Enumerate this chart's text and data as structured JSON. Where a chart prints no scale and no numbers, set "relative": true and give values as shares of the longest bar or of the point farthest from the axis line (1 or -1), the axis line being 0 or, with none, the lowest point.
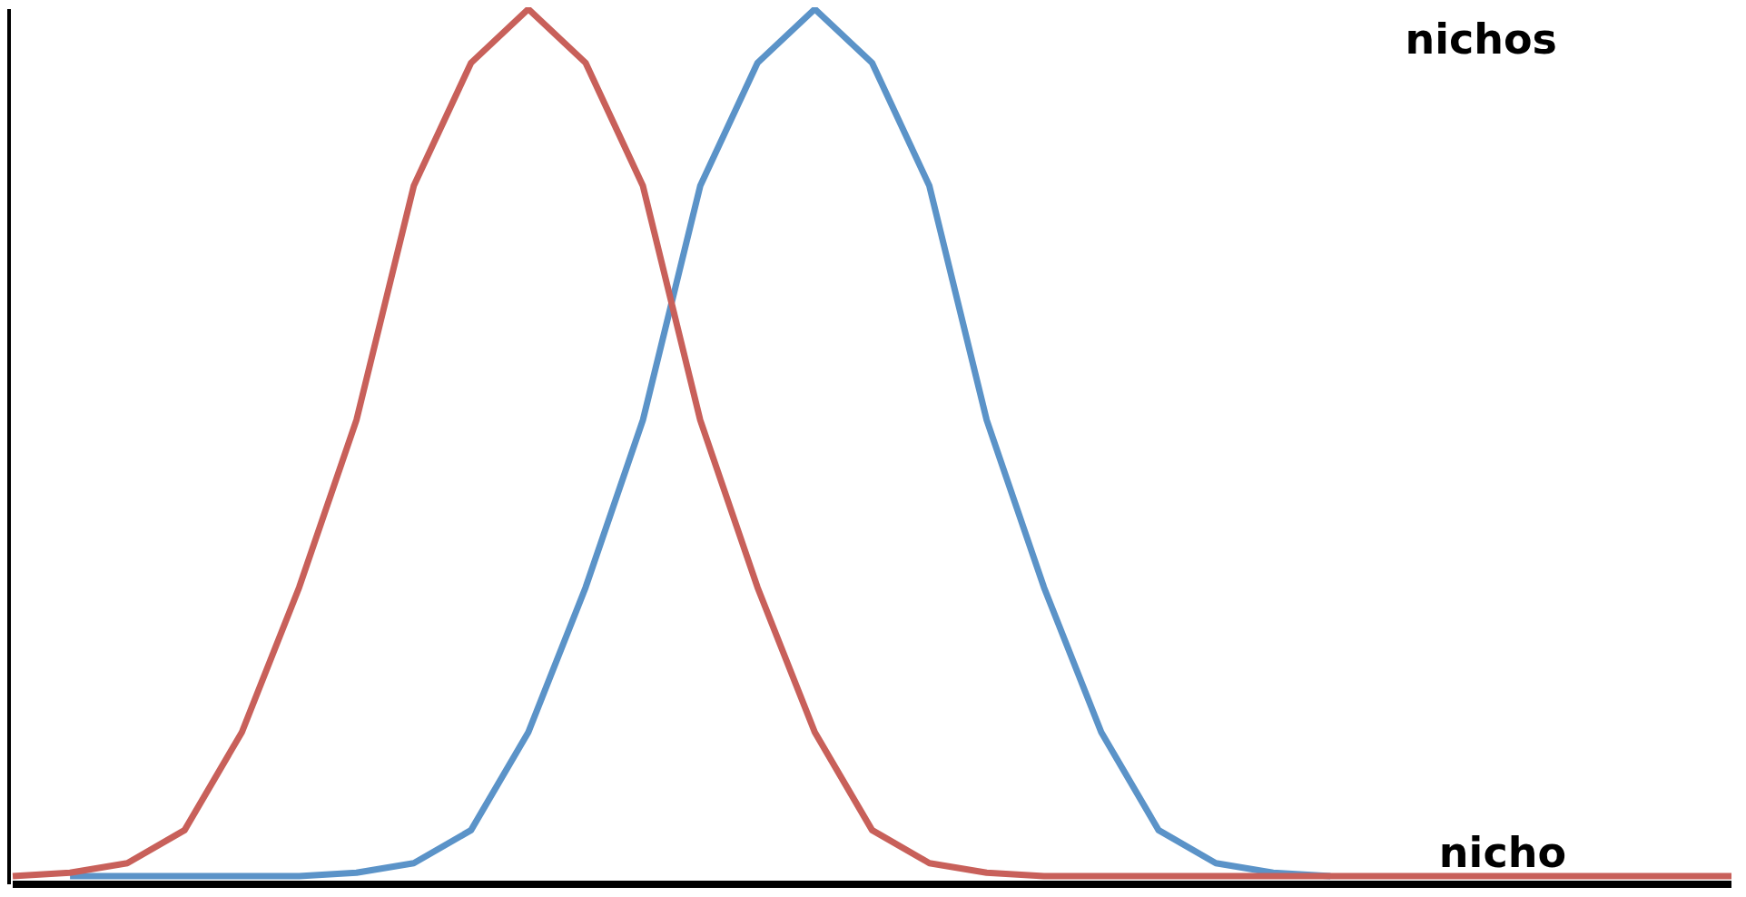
{
  "chart_data": {
    "type": "line",
    "relative": true,
    "categories": [
      null,
      null,
      null,
      null,
      null,
      null,
      null,
      null,
      null,
      null,
      null,
      null,
      null,
      null,
      null,
      null,
      null,
      null,
      null,
      null,
      null,
      null,
      null,
      null,
      null,
      null,
      null,
      null,
      null,
      null,
      null
    ],
    "series": [
      {
        "color": "#5b93c8",
        "values": [
          null,
          0,
          0,
          0,
          0,
          0,
          0.004,
          0.015,
          0.053,
          0.166,
          0.333,
          0.526,
          0.796,
          0.938,
          1,
          0.938,
          0.796,
          0.526,
          0.333,
          0.166,
          0.053,
          0.015,
          0.004,
          0,
          null,
          null,
          null,
          null,
          null,
          null,
          null
        ]
      },
      {
        "color": "#c8605a",
        "values": [
          0,
          0.004,
          0.015,
          0.053,
          0.166,
          0.333,
          0.526,
          0.796,
          0.938,
          1,
          0.938,
          0.796,
          0.526,
          0.333,
          0.166,
          0.053,
          0.015,
          0.004,
          0,
          0,
          0,
          0,
          0,
          0,
          0,
          0,
          0,
          0,
          0,
          0,
          0
        ]
      }
    ],
    "annotations": [
      "nichos",
      "nicho"
    ],
    "grid": false,
    "legend": false,
    "marker": "none",
    "line_style": "solid"
  }
}
